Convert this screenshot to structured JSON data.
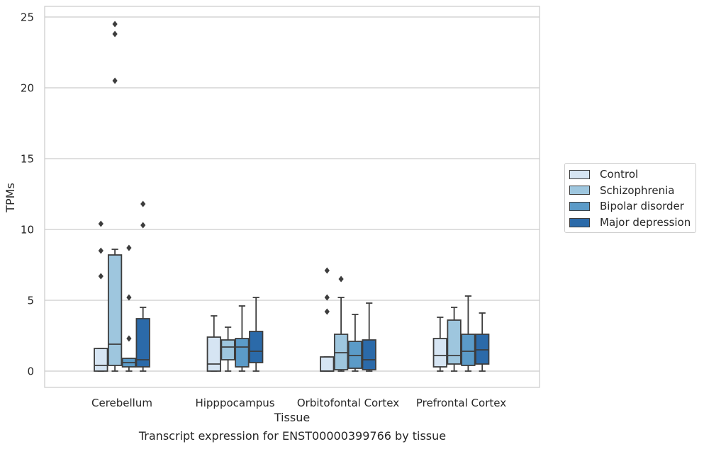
{
  "caption": "Transcript expression for ENST00000399766 by tissue",
  "chart_data": {
    "type": "box",
    "title": "",
    "xlabel": "Tissue",
    "ylabel": "TPMs",
    "categories": [
      "Cerebellum",
      "Hipppocampus",
      "Orbitofontal Cortex",
      "Prefrontal Cortex"
    ],
    "ylim": [
      -1.2,
      25.8
    ],
    "yticks": [
      0,
      5,
      10,
      15,
      20,
      25
    ],
    "grid": "horizontal",
    "legend_position": "right",
    "series": [
      {
        "name": "Control",
        "color": "#d6e5f3",
        "boxes": [
          {
            "min": 0,
            "q1": 0,
            "median": 0.4,
            "q3": 1.6,
            "max": 1.6,
            "outliers": [
              6.7,
              8.5,
              10.4
            ]
          },
          {
            "min": 0,
            "q1": 0,
            "median": 0.5,
            "q3": 2.4,
            "max": 3.9,
            "outliers": []
          },
          {
            "min": 0,
            "q1": 0,
            "median": 0,
            "q3": 1.0,
            "max": 1.0,
            "outliers": [
              4.2,
              5.2,
              7.1
            ]
          },
          {
            "min": 0,
            "q1": 0.3,
            "median": 1.1,
            "q3": 2.3,
            "max": 3.8,
            "outliers": []
          }
        ]
      },
      {
        "name": "Schizophrenia",
        "color": "#9ec6de",
        "boxes": [
          {
            "min": 0,
            "q1": 0.4,
            "median": 1.9,
            "q3": 8.2,
            "max": 8.6,
            "outliers": [
              20.5,
              23.8,
              24.5
            ]
          },
          {
            "min": 0,
            "q1": 0.8,
            "median": 1.7,
            "q3": 2.2,
            "max": 3.1,
            "outliers": []
          },
          {
            "min": 0,
            "q1": 0.1,
            "median": 1.3,
            "q3": 2.6,
            "max": 5.2,
            "outliers": [
              6.5
            ]
          },
          {
            "min": 0,
            "q1": 0.5,
            "median": 1.1,
            "q3": 3.6,
            "max": 4.5,
            "outliers": []
          }
        ]
      },
      {
        "name": "Bipolar disorder",
        "color": "#5b9bc8",
        "boxes": [
          {
            "min": 0,
            "q1": 0.3,
            "median": 0.6,
            "q3": 0.9,
            "max": 0.9,
            "outliers": [
              2.3,
              5.2,
              8.7
            ]
          },
          {
            "min": 0,
            "q1": 0.3,
            "median": 1.7,
            "q3": 2.3,
            "max": 4.6,
            "outliers": []
          },
          {
            "min": 0,
            "q1": 0.2,
            "median": 1.1,
            "q3": 2.1,
            "max": 4.0,
            "outliers": []
          },
          {
            "min": 0,
            "q1": 0.4,
            "median": 1.4,
            "q3": 2.6,
            "max": 5.3,
            "outliers": []
          }
        ]
      },
      {
        "name": "Major depression",
        "color": "#2b6aa9",
        "boxes": [
          {
            "min": 0,
            "q1": 0.3,
            "median": 0.8,
            "q3": 3.7,
            "max": 4.5,
            "outliers": [
              10.3,
              11.8
            ]
          },
          {
            "min": 0,
            "q1": 0.6,
            "median": 1.4,
            "q3": 2.8,
            "max": 5.2,
            "outliers": []
          },
          {
            "min": 0,
            "q1": 0.1,
            "median": 0.8,
            "q3": 2.2,
            "max": 4.8,
            "outliers": []
          },
          {
            "min": 0,
            "q1": 0.5,
            "median": 1.5,
            "q3": 2.6,
            "max": 4.1,
            "outliers": []
          }
        ]
      }
    ]
  }
}
